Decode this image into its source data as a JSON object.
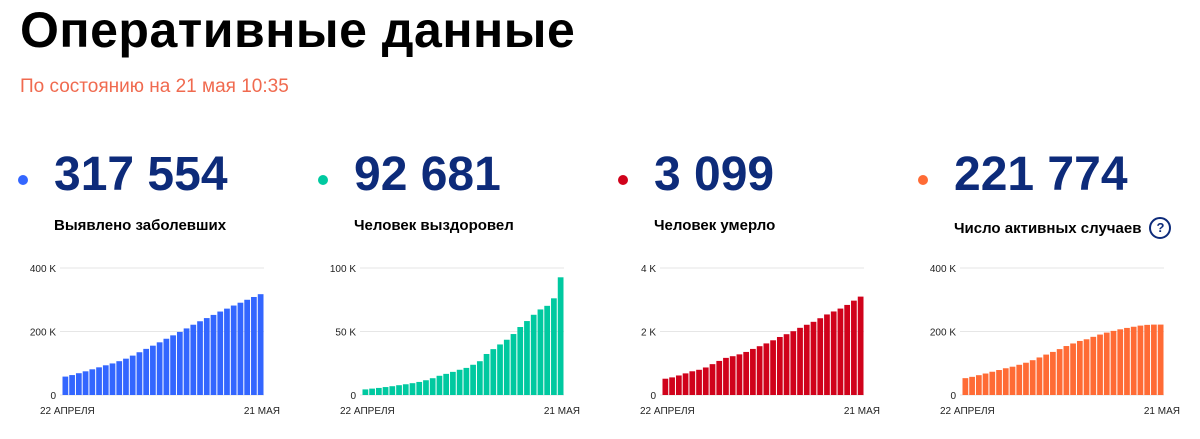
{
  "header": {
    "title": "Оперативные данные",
    "subtitle": "По состоянию на 21 мая 10:35"
  },
  "cards": [
    {
      "value": "317 554",
      "label": "Выявлено заболевших",
      "color": "#3366ff",
      "help": false
    },
    {
      "value": "92 681",
      "label": "Человек выздоровел",
      "color": "#00c9a0",
      "help": false
    },
    {
      "value": "3 099",
      "label": "Человек умерло",
      "color": "#d0021b",
      "help": false
    },
    {
      "value": "221 774",
      "label": "Число активных случаев",
      "color": "#ff6b35",
      "help": true,
      "help_symbol": "?"
    }
  ],
  "chart_data": [
    {
      "type": "bar",
      "x_start": "22 АПРЕЛЯ",
      "x_end": "21 МАЯ",
      "yticks": [
        {
          "v": 0,
          "label": "0"
        },
        {
          "v": 200000,
          "label": "200 K"
        },
        {
          "v": 400000,
          "label": "400 K"
        }
      ],
      "ylim": [
        0,
        400000
      ],
      "color": "#3366ff",
      "values": [
        57999,
        62773,
        68622,
        74588,
        80949,
        87147,
        93558,
        99399,
        106498,
        114431,
        124054,
        134687,
        145268,
        155370,
        165929,
        177160,
        187859,
        198676,
        209688,
        221344,
        232243,
        242271,
        252245,
        262843,
        272043,
        281752,
        290678,
        299941,
        308705,
        317554
      ]
    },
    {
      "type": "bar",
      "x_start": "22 АПРЕЛЯ",
      "x_end": "21 МАЯ",
      "yticks": [
        {
          "v": 0,
          "label": "0"
        },
        {
          "v": 50000,
          "label": "50 K"
        },
        {
          "v": 100000,
          "label": "100 K"
        }
      ],
      "ylim": [
        0,
        100000
      ],
      "color": "#00c9a0",
      "values": [
        4420,
        5031,
        5568,
        6249,
        6923,
        7714,
        8456,
        9306,
        10286,
        11619,
        13220,
        15131,
        16639,
        18209,
        19865,
        21327,
        23803,
        26608,
        32291,
        36117,
        39801,
        43512,
        48003,
        53530,
        58226,
        63166,
        67373,
        70209,
        76130,
        92681
      ]
    },
    {
      "type": "bar",
      "x_start": "22 АПРЕЛЯ",
      "x_end": "21 МАЯ",
      "yticks": [
        {
          "v": 0,
          "label": "0"
        },
        {
          "v": 2000,
          "label": "2 K"
        },
        {
          "v": 4000,
          "label": "4 K"
        }
      ],
      "ylim": [
        0,
        4000
      ],
      "color": "#d0021b",
      "values": [
        513,
        555,
        615,
        681,
        747,
        794,
        867,
        972,
        1073,
        1169,
        1222,
        1280,
        1356,
        1451,
        1537,
        1625,
        1723,
        1827,
        1915,
        2009,
        2116,
        2212,
        2305,
        2418,
        2537,
        2631,
        2722,
        2837,
        2972,
        3099
      ]
    },
    {
      "type": "bar",
      "x_start": "22 АПРЕЛЯ",
      "x_end": "21 МАЯ",
      "yticks": [
        {
          "v": 0,
          "label": "0"
        },
        {
          "v": 200000,
          "label": "200 K"
        },
        {
          "v": 400000,
          "label": "400 K"
        }
      ],
      "ylim": [
        0,
        400000
      ],
      "color": "#ff6b35",
      "values": [
        53066,
        57187,
        62439,
        67658,
        73279,
        78639,
        84235,
        89121,
        95139,
        101643,
        109612,
        118276,
        127273,
        135710,
        144527,
        154208,
        162333,
        170241,
        175482,
        183218,
        190326,
        196547,
        201937,
        206895,
        211280,
        214955,
        218583,
        220895,
        221723,
        221774
      ]
    }
  ]
}
